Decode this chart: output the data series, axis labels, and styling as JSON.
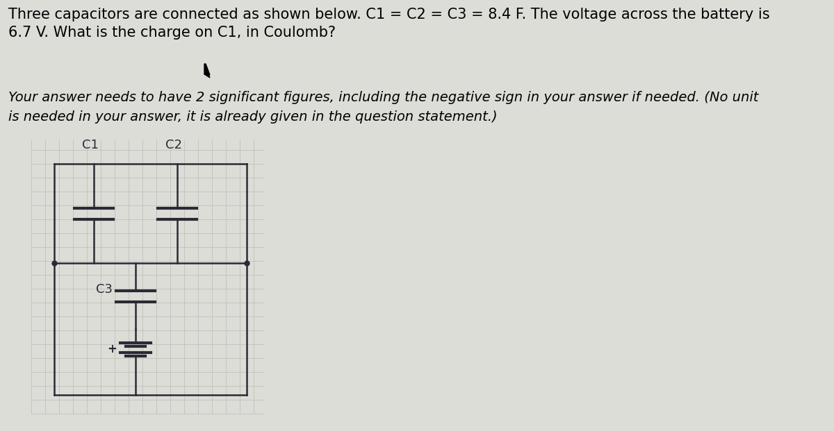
{
  "title_text": "Three capacitors are connected as shown below. C1 = C2 = C3 = 8.4 F. The voltage across the battery is\n6.7 V. What is the charge on C1, in Coulomb?",
  "subtitle_text": "Your answer needs to have 2 significant figures, including the negative sign in your answer if needed. (No unit\nis needed in your answer, it is already given in the question statement.)",
  "bg_color": "#ddddd8",
  "grid_color": "#c0c0bc",
  "circuit_color": "#2a2a35",
  "title_fontsize": 15.0,
  "subtitle_fontsize": 14.0,
  "c1_label": "C1",
  "c2_label": "C2",
  "c3_label": "C3",
  "fig_width": 12.0,
  "fig_height": 6.21
}
